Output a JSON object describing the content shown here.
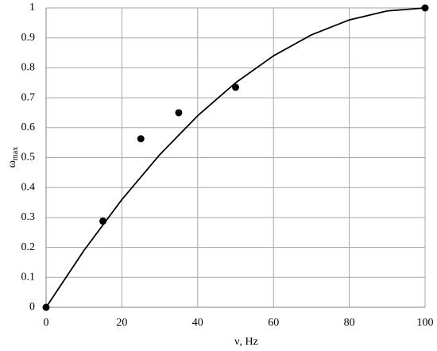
{
  "chart_data": {
    "type": "scatter",
    "xlabel": "ν, Hz",
    "ylabel": "ω",
    "ylabel_subscript": "max",
    "points": {
      "x": [
        0,
        15,
        25,
        35,
        50,
        100
      ],
      "y": [
        0,
        0.288,
        0.563,
        0.65,
        0.735,
        1
      ],
      "color": "#000000"
    },
    "curve": {
      "x": [
        0,
        10,
        20,
        30,
        40,
        50,
        60,
        70,
        80,
        90,
        100
      ],
      "y": [
        0,
        0.19,
        0.36,
        0.51,
        0.64,
        0.75,
        0.84,
        0.91,
        0.96,
        0.99,
        1
      ],
      "color": "#000000"
    },
    "xlim": [
      0,
      100
    ],
    "xticks": [
      0,
      20,
      40,
      60,
      80,
      100
    ],
    "ylim": [
      0,
      1
    ],
    "yticks": [
      0,
      0.1,
      0.2,
      0.3,
      0.4,
      0.5,
      0.6,
      0.7,
      0.8,
      0.9,
      1
    ],
    "grid": true
  }
}
